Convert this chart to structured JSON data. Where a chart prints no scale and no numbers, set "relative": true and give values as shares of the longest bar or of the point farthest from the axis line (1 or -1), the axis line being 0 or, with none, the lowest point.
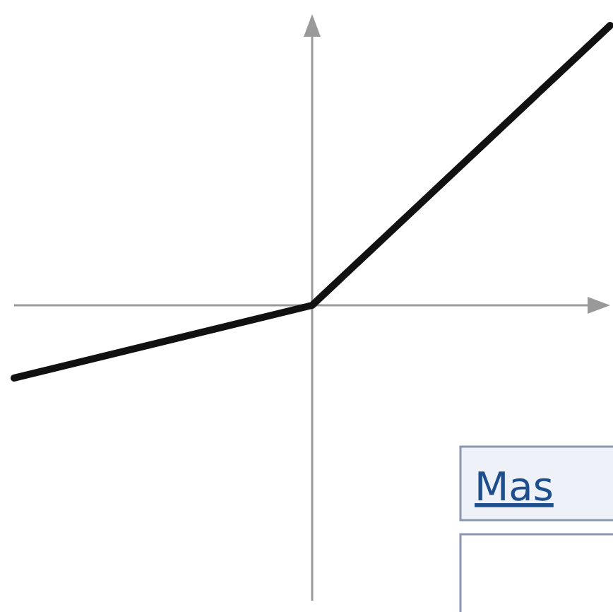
{
  "chart_data": {
    "type": "line",
    "relative": true,
    "categories": [
      null,
      null,
      null
    ],
    "series": [
      {
        "color": "#111111",
        "values": [
          -0.26,
          0,
          1
        ]
      }
    ],
    "annotations": [
      "Mas"
    ],
    "marker": "none",
    "line_style": "solid"
  }
}
